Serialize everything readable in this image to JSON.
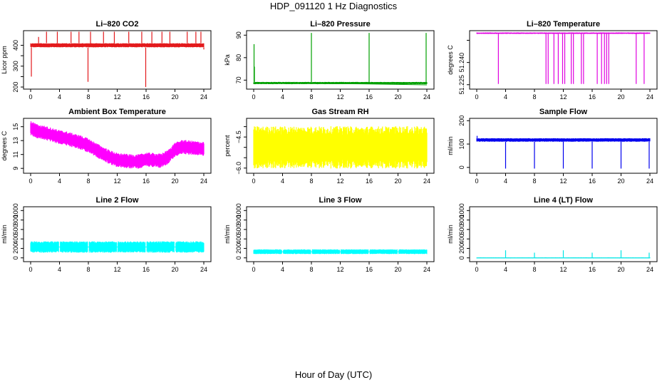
{
  "figure": {
    "title": "HDP_091120  1 Hz Diagnostics",
    "xlabel": "Hour of Day (UTC)"
  },
  "chart_data": [
    {
      "type": "line",
      "title": "Li–820 CO2",
      "ylabel": "Licor ppm",
      "color": "#e31a1c",
      "x_ticks": [
        0,
        4,
        8,
        12,
        16,
        20,
        24
      ],
      "xlim": [
        0,
        24
      ],
      "y_ticks": [
        200,
        250,
        300,
        350,
        400
      ],
      "y_tick_labels": [
        "200",
        "",
        "300",
        "",
        "400"
      ],
      "ylim": [
        190,
        470
      ],
      "baseline_band": [
        390,
        410
      ],
      "spikes_up": [
        [
          1.1,
          440
        ],
        [
          2.2,
          465
        ],
        [
          3.7,
          465
        ],
        [
          5.6,
          465
        ],
        [
          6.7,
          465
        ],
        [
          8.3,
          465
        ],
        [
          10.1,
          465
        ],
        [
          11.6,
          465
        ],
        [
          13.6,
          465
        ],
        [
          15.4,
          465
        ],
        [
          16.8,
          465
        ],
        [
          18.2,
          465
        ],
        [
          19.3,
          465
        ],
        [
          21.7,
          465
        ],
        [
          22.9,
          465
        ],
        [
          23.6,
          465
        ]
      ],
      "spikes_down": [
        [
          0.1,
          250
        ],
        [
          7.95,
          225
        ],
        [
          15.95,
          200
        ],
        [
          24.0,
          380
        ]
      ],
      "series": [
        {
          "name": "CO2",
          "x": [
            0,
            2,
            4,
            6,
            8,
            10,
            12,
            14,
            16,
            18,
            20,
            22,
            24
          ],
          "y": [
            400,
            401,
            400,
            402,
            399,
            400,
            401,
            400,
            399,
            401,
            400,
            401,
            398
          ]
        }
      ]
    },
    {
      "type": "line",
      "title": "Li–820 Pressure",
      "ylabel": "kPa",
      "color": "#00a000",
      "x_ticks": [
        0,
        4,
        8,
        12,
        16,
        20,
        24
      ],
      "xlim": [
        0,
        24
      ],
      "y_ticks": [
        70,
        80,
        90
      ],
      "y_tick_labels": [
        "70",
        "80",
        "90"
      ],
      "ylim": [
        66,
        92
      ],
      "baseline_band": [
        68.2,
        69.2
      ],
      "spikes_up": [
        [
          0.05,
          86
        ],
        [
          0.1,
          76
        ],
        [
          8.0,
          91
        ],
        [
          16.0,
          91
        ],
        [
          23.9,
          91
        ]
      ],
      "spikes_down": [],
      "series": [
        {
          "name": "Pressure",
          "x": [
            0,
            4,
            8,
            12,
            16,
            20,
            24
          ],
          "y": [
            68.8,
            68.6,
            68.5,
            68.4,
            68.3,
            68.1,
            67.9
          ]
        }
      ]
    },
    {
      "type": "line",
      "title": "Li–820 Temperature",
      "ylabel": "degrees C",
      "color": "#e000e0",
      "x_ticks": [
        0,
        4,
        8,
        12,
        16,
        20,
        24
      ],
      "xlim": [
        0,
        24
      ],
      "y_ticks": [
        51.225,
        51.24,
        51.255
      ],
      "y_tick_labels": [
        "51.225",
        "51.240",
        ""
      ],
      "ylim": [
        51.222,
        51.2615
      ],
      "baseline_band": [
        51.2593,
        51.2603
      ],
      "spikes_up": [],
      "spikes_down": [
        [
          3.0,
          51.2255
        ],
        [
          9.6,
          51.2255
        ],
        [
          9.9,
          51.2255
        ],
        [
          10.7,
          51.2255
        ],
        [
          11.3,
          51.2255
        ],
        [
          11.9,
          51.2255
        ],
        [
          12.2,
          51.2255
        ],
        [
          13.1,
          51.2255
        ],
        [
          13.4,
          51.2255
        ],
        [
          14.5,
          51.2255
        ],
        [
          14.8,
          51.2255
        ],
        [
          16.7,
          51.2255
        ],
        [
          17.3,
          51.2255
        ],
        [
          17.7,
          51.2255
        ],
        [
          18.0,
          51.2255
        ],
        [
          18.3,
          51.2255
        ],
        [
          22.1,
          51.2255
        ],
        [
          23.2,
          51.2255
        ]
      ],
      "series": [
        {
          "name": "Temperature",
          "x": [
            0,
            24
          ],
          "y": [
            51.2598,
            51.2598
          ]
        }
      ]
    },
    {
      "type": "line",
      "title": "Ambient Box Temperature",
      "ylabel": "degrees C",
      "color": "#ff00ff",
      "x_ticks": [
        0,
        4,
        8,
        12,
        16,
        20,
        24
      ],
      "xlim": [
        0,
        24
      ],
      "y_ticks": [
        9,
        11,
        13,
        15
      ],
      "y_tick_labels": [
        "9",
        "11",
        "13",
        "15"
      ],
      "ylim": [
        8.3,
        16.2
      ],
      "band_halfwidth": 0.85,
      "series": [
        {
          "name": "Box Temp",
          "x": [
            0,
            1,
            2,
            3,
            4,
            5,
            6,
            7,
            8,
            9,
            10,
            11,
            12,
            13,
            14,
            15,
            16,
            17,
            18,
            19,
            20,
            21,
            22,
            23,
            24
          ],
          "y": [
            14.8,
            14.3,
            14.1,
            13.8,
            13.5,
            13.3,
            13.0,
            12.7,
            12.3,
            11.7,
            11.1,
            10.6,
            10.2,
            10.1,
            10.0,
            10.0,
            10.3,
            10.2,
            10.1,
            10.6,
            11.7,
            12.1,
            12.0,
            11.9,
            11.8
          ]
        }
      ]
    },
    {
      "type": "line",
      "title": "Gas Stream RH",
      "ylabel": "percent",
      "color": "#ffff00",
      "x_ticks": [
        0,
        4,
        8,
        12,
        16,
        20,
        24
      ],
      "xlim": [
        0,
        24
      ],
      "y_ticks": [
        -6.0,
        -5.5,
        -5.0,
        -4.5,
        -4.0
      ],
      "y_tick_labels": [
        "−6.0",
        "",
        "",
        "−4.5",
        ""
      ],
      "ylim": [
        -6.25,
        -3.6
      ],
      "band_halfwidth": 0.85,
      "series": [
        {
          "name": "RH",
          "x": [
            0,
            12,
            24
          ],
          "y": [
            -5.0,
            -5.0,
            -5.0
          ]
        }
      ]
    },
    {
      "type": "line",
      "title": "Sample Flow",
      "ylabel": "ml/min",
      "color": "#0000ee",
      "x_ticks": [
        0,
        4,
        8,
        12,
        16,
        20,
        24
      ],
      "xlim": [
        0,
        24
      ],
      "y_ticks": [
        0,
        100,
        200
      ],
      "y_tick_labels": [
        "0",
        "100",
        "200"
      ],
      "ylim": [
        -25,
        210
      ],
      "baseline_band": [
        110,
        125
      ],
      "spikes_up": [
        [
          0.05,
          135
        ]
      ],
      "spikes_down": [
        [
          4.0,
          -5
        ],
        [
          8.0,
          -5
        ],
        [
          12.0,
          -5
        ],
        [
          16.0,
          -5
        ],
        [
          20.0,
          -5
        ],
        [
          23.9,
          -5
        ]
      ],
      "series": [
        {
          "name": "Sample Flow",
          "x": [
            0,
            24
          ],
          "y": [
            118,
            118
          ]
        }
      ]
    },
    {
      "type": "line",
      "title": "Line 2 Flow",
      "ylabel": "ml/min",
      "color": "#00ffff",
      "x_ticks": [
        0,
        4,
        8,
        12,
        16,
        20,
        24
      ],
      "xlim": [
        0,
        24
      ],
      "y_ticks": [
        0,
        200,
        400,
        600,
        800,
        1000
      ],
      "y_tick_labels": [
        "0",
        "200",
        "400",
        "600",
        "800",
        "1000"
      ],
      "ylim": [
        -80,
        1080
      ],
      "baseline_band": [
        110,
        350
      ],
      "gaps": [
        4,
        8,
        12,
        16,
        20
      ],
      "series": [
        {
          "name": "Line 2",
          "x": [
            0,
            24
          ],
          "y": [
            230,
            230
          ]
        }
      ]
    },
    {
      "type": "line",
      "title": "Line 3 Flow",
      "ylabel": "ml/min",
      "color": "#00ffff",
      "x_ticks": [
        0,
        4,
        8,
        12,
        16,
        20,
        24
      ],
      "xlim": [
        0,
        24
      ],
      "y_ticks": [
        0,
        200,
        400,
        600,
        800,
        1000
      ],
      "y_tick_labels": [
        "0",
        "200",
        "400",
        "600",
        "800",
        "1000"
      ],
      "ylim": [
        -80,
        1080
      ],
      "baseline_band": [
        80,
        180
      ],
      "gaps": [
        4,
        8,
        12,
        16,
        20
      ],
      "series": [
        {
          "name": "Line 3",
          "x": [
            0,
            24
          ],
          "y": [
            130,
            130
          ]
        }
      ]
    },
    {
      "type": "line",
      "title": "Line 4 (LT) Flow",
      "ylabel": "ml/min",
      "color": "#00e5e5",
      "x_ticks": [
        0,
        4,
        8,
        12,
        16,
        20,
        24
      ],
      "xlim": [
        0,
        24
      ],
      "y_ticks": [
        0,
        200,
        400,
        600,
        800,
        1000
      ],
      "y_tick_labels": [
        "0",
        "200",
        "400",
        "600",
        "800",
        "1000"
      ],
      "ylim": [
        -80,
        1080
      ],
      "baseline_band": [
        -10,
        10
      ],
      "spikes_up": [
        [
          4.0,
          160
        ],
        [
          8.0,
          110
        ],
        [
          12.0,
          160
        ],
        [
          16.0,
          110
        ],
        [
          20.0,
          160
        ],
        [
          23.9,
          110
        ]
      ],
      "spikes_down": [],
      "series": [
        {
          "name": "Line 4",
          "x": [
            0,
            24
          ],
          "y": [
            0,
            0
          ]
        }
      ]
    }
  ]
}
